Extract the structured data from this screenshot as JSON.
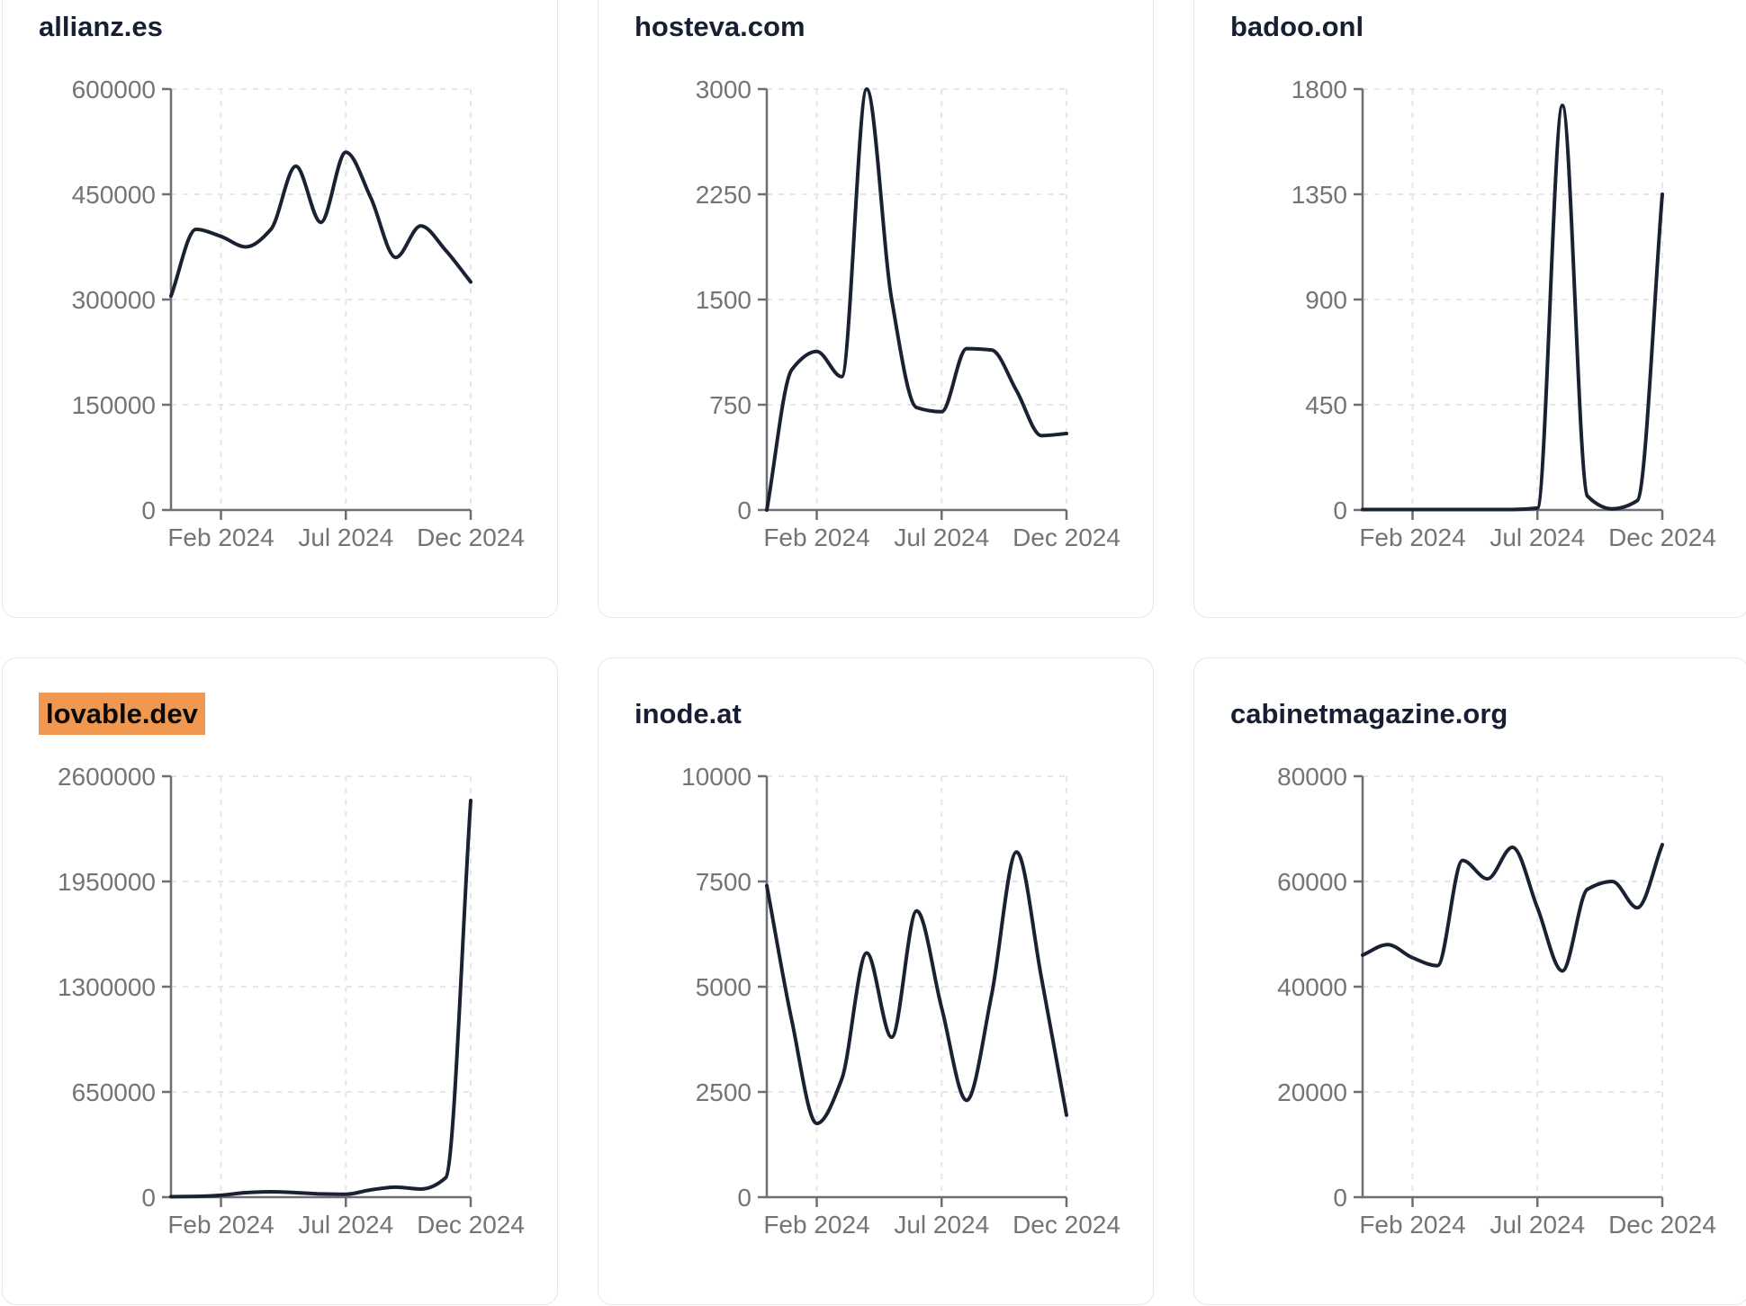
{
  "colors": {
    "background": "#ffffff",
    "card_border": "#e2e7f0",
    "title": "#181f33",
    "line": "#1a2132",
    "axis": "#6e6e73",
    "tick_label": "#747478",
    "gridline": "#e5e6ea",
    "highlight": "#f0984f",
    "highlight_text": "#0a0a0a"
  },
  "x_tick_labels": [
    "Feb 2024",
    "Jul 2024",
    "Dec 2024"
  ],
  "x_tick_indices": [
    2,
    7,
    12
  ],
  "chart_data": [
    {
      "type": "line",
      "title": "allianz.es",
      "title_highlighted": false,
      "x": [
        "Dec 2023",
        "Jan 2024",
        "Feb 2024",
        "Mar 2024",
        "Apr 2024",
        "May 2024",
        "Jun 2024",
        "Jul 2024",
        "Aug 2024",
        "Sep 2024",
        "Oct 2024",
        "Nov 2024",
        "Dec 2024"
      ],
      "values": [
        305000,
        400000,
        390000,
        375000,
        400000,
        490000,
        410000,
        510000,
        445000,
        360000,
        405000,
        370000,
        325000
      ],
      "ylim": [
        0,
        600000
      ],
      "y_ticks": [
        600000,
        450000,
        300000,
        150000,
        0
      ],
      "x_tick_labels": [
        "Feb 2024",
        "Jul 2024",
        "Dec 2024"
      ],
      "grid": "dashed",
      "legend": "none"
    },
    {
      "type": "line",
      "title": "hosteva.com",
      "title_highlighted": false,
      "x": [
        "Dec 2023",
        "Jan 2024",
        "Feb 2024",
        "Mar 2024",
        "Apr 2024",
        "May 2024",
        "Jun 2024",
        "Jul 2024",
        "Aug 2024",
        "Sep 2024",
        "Oct 2024",
        "Nov 2024",
        "Dec 2024"
      ],
      "values": [
        0,
        1000,
        1130,
        950,
        3000,
        1500,
        730,
        700,
        1150,
        1140,
        850,
        530,
        545
      ],
      "ylim": [
        0,
        3000
      ],
      "y_ticks": [
        3000,
        2250,
        1500,
        750,
        0
      ],
      "x_tick_labels": [
        "Feb 2024",
        "Jul 2024",
        "Dec 2024"
      ],
      "grid": "dashed",
      "legend": "none"
    },
    {
      "type": "line",
      "title": "badoo.onl",
      "title_highlighted": false,
      "x": [
        "Dec 2023",
        "Jan 2024",
        "Feb 2024",
        "Mar 2024",
        "Apr 2024",
        "May 2024",
        "Jun 2024",
        "Jul 2024",
        "Aug 2024",
        "Sep 2024",
        "Oct 2024",
        "Nov 2024",
        "Dec 2024"
      ],
      "values": [
        2,
        2,
        2,
        2,
        2,
        2,
        2,
        8,
        1730,
        60,
        5,
        40,
        1350
      ],
      "ylim": [
        0,
        1800
      ],
      "y_ticks": [
        1800,
        1350,
        900,
        450,
        0
      ],
      "x_tick_labels": [
        "Feb 2024",
        "Jul 2024",
        "Dec 2024"
      ],
      "grid": "dashed",
      "legend": "none"
    },
    {
      "type": "line",
      "title": "lovable.dev",
      "title_highlighted": true,
      "x": [
        "Dec 2023",
        "Jan 2024",
        "Feb 2024",
        "Mar 2024",
        "Apr 2024",
        "May 2024",
        "Jun 2024",
        "Jul 2024",
        "Aug 2024",
        "Sep 2024",
        "Oct 2024",
        "Nov 2024",
        "Dec 2024"
      ],
      "values": [
        3000,
        5000,
        12000,
        28000,
        33000,
        28000,
        20000,
        18000,
        45000,
        62000,
        50000,
        120000,
        2450000
      ],
      "ylim": [
        0,
        2600000
      ],
      "y_ticks": [
        2600000,
        1950000,
        1300000,
        650000,
        0
      ],
      "x_tick_labels": [
        "Feb 2024",
        "Jul 2024",
        "Dec 2024"
      ],
      "grid": "dashed",
      "legend": "none"
    },
    {
      "type": "line",
      "title": "inode.at",
      "title_highlighted": false,
      "x": [
        "Dec 2023",
        "Jan 2024",
        "Feb 2024",
        "Mar 2024",
        "Apr 2024",
        "May 2024",
        "Jun 2024",
        "Jul 2024",
        "Aug 2024",
        "Sep 2024",
        "Oct 2024",
        "Nov 2024",
        "Dec 2024"
      ],
      "values": [
        7400,
        4200,
        1750,
        2800,
        5800,
        3800,
        6800,
        4500,
        2300,
        4800,
        8200,
        5200,
        1950
      ],
      "ylim": [
        0,
        10000
      ],
      "y_ticks": [
        10000,
        7500,
        5000,
        2500,
        0
      ],
      "x_tick_labels": [
        "Feb 2024",
        "Jul 2024",
        "Dec 2024"
      ],
      "grid": "dashed",
      "legend": "none"
    },
    {
      "type": "line",
      "title": "cabinetmagazine.org",
      "title_highlighted": false,
      "x": [
        "Dec 2023",
        "Jan 2024",
        "Feb 2024",
        "Mar 2024",
        "Apr 2024",
        "May 2024",
        "Jun 2024",
        "Jul 2024",
        "Aug 2024",
        "Sep 2024",
        "Oct 2024",
        "Nov 2024",
        "Dec 2024"
      ],
      "values": [
        46000,
        48000,
        45500,
        44000,
        64000,
        60500,
        66500,
        55000,
        43000,
        58500,
        60000,
        55000,
        67000
      ],
      "ylim": [
        0,
        80000
      ],
      "y_ticks": [
        80000,
        60000,
        40000,
        20000,
        0
      ],
      "x_tick_labels": [
        "Feb 2024",
        "Jul 2024",
        "Dec 2024"
      ],
      "grid": "dashed",
      "legend": "none"
    }
  ]
}
